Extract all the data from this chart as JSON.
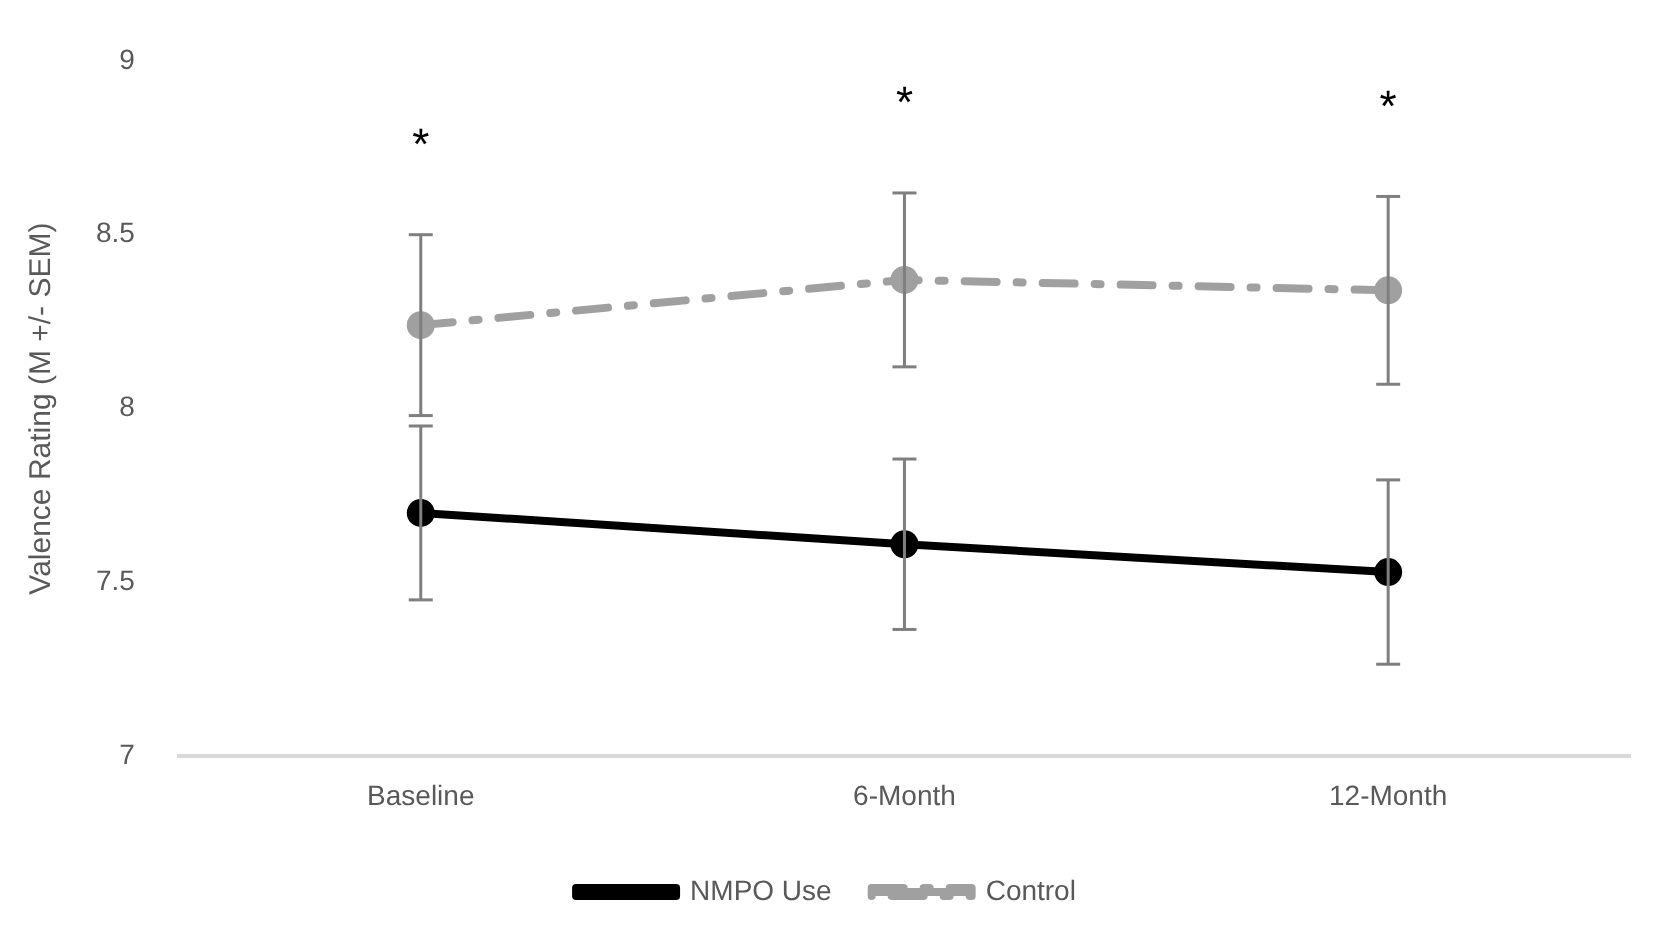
{
  "chart_data": {
    "type": "line",
    "ylabel": "Valence Rating (M +/- SEM)",
    "categories": [
      "Baseline",
      "6-Month",
      "12-Month"
    ],
    "series": [
      {
        "name": "NMPO Use",
        "color": "#000000",
        "values": [
          7.7,
          7.61,
          7.53
        ],
        "errors": [
          0.25,
          0.245,
          0.265
        ],
        "line_style": "solid"
      },
      {
        "name": "Control",
        "color": "#a0a0a0",
        "values": [
          8.24,
          8.37,
          8.34
        ],
        "errors": [
          0.26,
          0.25,
          0.27
        ],
        "line_style": "dashed"
      }
    ],
    "ylim": [
      7,
      9
    ],
    "yticks": [
      7,
      7.5,
      8,
      8.5,
      9
    ],
    "grid": false,
    "legend": "bottom",
    "marker": "circle",
    "annotations": [
      "*",
      "*",
      "*"
    ]
  }
}
